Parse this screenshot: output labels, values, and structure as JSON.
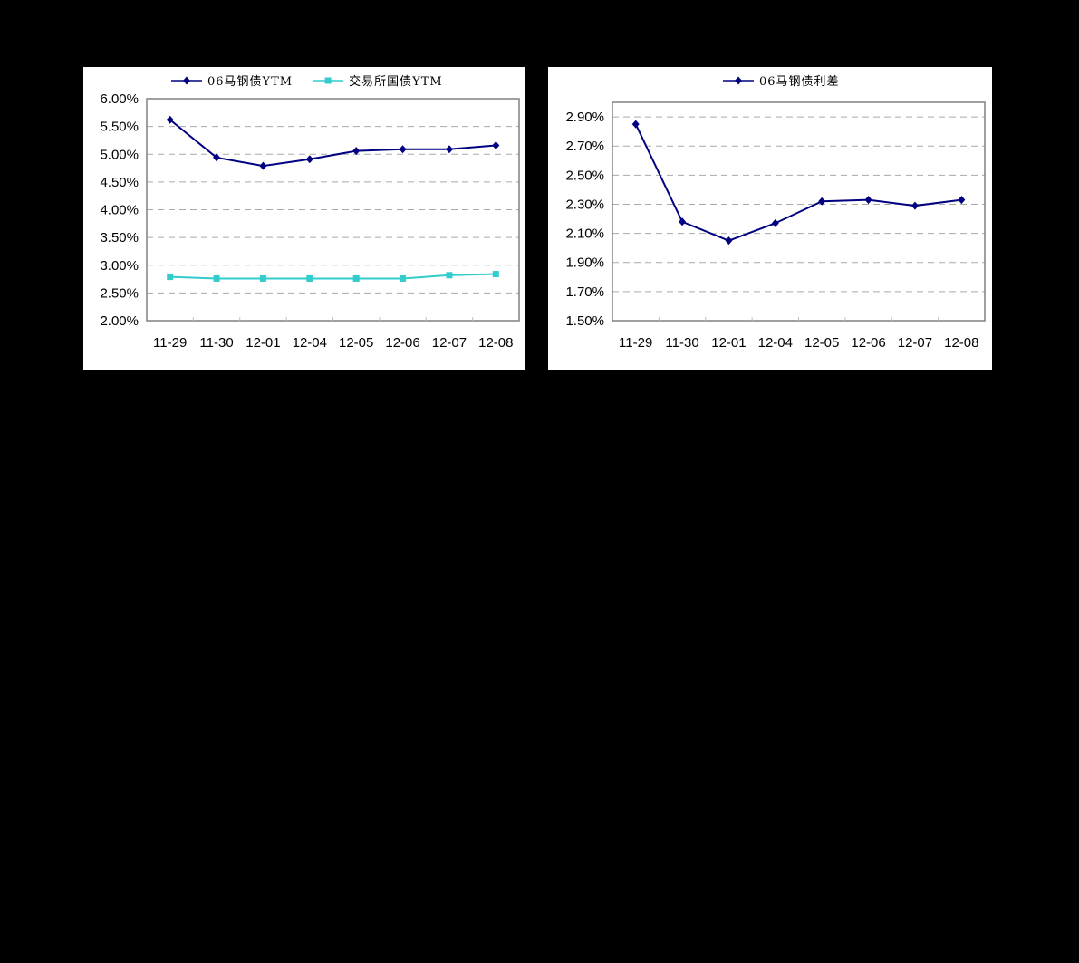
{
  "colors": {
    "page_background": "#000000",
    "panel_background": "#ffffff",
    "series_navy": "#000080",
    "series_cyan": "#33CCCC",
    "gridline": "#AAAAAA",
    "axis": "#808080"
  },
  "chart_data": [
    {
      "type": "line",
      "title": "",
      "xlabel": "",
      "ylabel": "",
      "categories": [
        "11-29",
        "11-30",
        "12-01",
        "12-04",
        "12-05",
        "12-06",
        "12-07",
        "12-08"
      ],
      "series": [
        {
          "name": "06马钢债YTM",
          "color": "#000080",
          "marker": "diamond",
          "values": [
            5.62,
            4.94,
            4.79,
            4.91,
            5.06,
            5.09,
            5.09,
            5.16
          ]
        },
        {
          "name": "交易所国债YTM",
          "color": "#33CCCC",
          "marker": "square",
          "values": [
            2.79,
            2.76,
            2.76,
            2.76,
            2.76,
            2.76,
            2.82,
            2.84
          ]
        }
      ],
      "value_unit": "%",
      "ylim": [
        2.0,
        6.0
      ],
      "yticks": [
        2.0,
        2.5,
        3.0,
        3.5,
        4.0,
        4.5,
        5.0,
        5.5,
        6.0
      ],
      "ytick_labels": [
        "2.00%",
        "2.50%",
        "3.00%",
        "3.50%",
        "4.00%",
        "4.50%",
        "5.00%",
        "5.50%",
        "6.00%"
      ],
      "grid": "horizontal dashed",
      "legend_position": "top"
    },
    {
      "type": "line",
      "title": "",
      "xlabel": "",
      "ylabel": "",
      "categories": [
        "11-29",
        "11-30",
        "12-01",
        "12-04",
        "12-05",
        "12-06",
        "12-07",
        "12-08"
      ],
      "series": [
        {
          "name": "06马钢债利差",
          "color": "#000080",
          "marker": "diamond",
          "values": [
            2.85,
            2.18,
            2.05,
            2.17,
            2.32,
            2.33,
            2.29,
            2.33
          ]
        }
      ],
      "value_unit": "%",
      "ylim": [
        1.5,
        3.0
      ],
      "yticks": [
        1.5,
        1.7,
        1.9,
        2.1,
        2.3,
        2.5,
        2.7,
        2.9
      ],
      "ytick_labels": [
        "1.50%",
        "1.70%",
        "1.90%",
        "2.10%",
        "2.30%",
        "2.50%",
        "2.70%",
        "2.90%"
      ],
      "grid": "horizontal dashed",
      "legend_position": "top"
    }
  ]
}
